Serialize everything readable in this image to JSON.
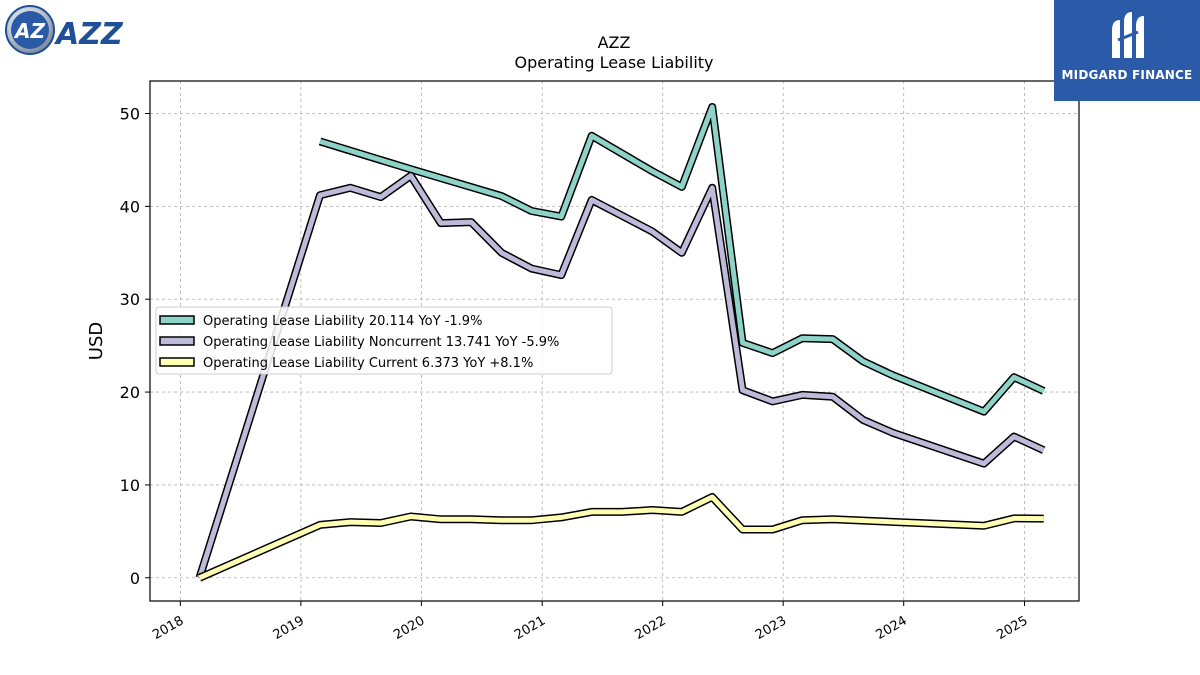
{
  "logos": {
    "company_text": "AZZ",
    "company_badge": "AZ",
    "sponsor_text": "MIDGARD FINANCE"
  },
  "chart_data": {
    "type": "line",
    "title": "AZZ",
    "subtitle": "Operating Lease Liability",
    "xlabel": "",
    "ylabel": "USD",
    "xlim": [
      "2017-10-01",
      "2025-06-15"
    ],
    "ylim": [
      -2.5,
      53.5
    ],
    "x_ticks": [
      "2018",
      "2019",
      "2020",
      "2021",
      "2022",
      "2023",
      "2024",
      "2025"
    ],
    "y_ticks": [
      0,
      10,
      20,
      30,
      40,
      50
    ],
    "grid": true,
    "legend_position": "center-left",
    "series": [
      {
        "name": "Operating Lease Liability  20.114 YoY -1.9%",
        "color": "#8dd3c7",
        "points": [
          [
            "2019-02-28",
            47.0
          ],
          [
            "2019-11-30",
            44.0
          ],
          [
            "2020-08-31",
            41.1
          ],
          [
            "2020-11-30",
            39.5
          ],
          [
            "2021-02-28",
            38.9
          ],
          [
            "2021-05-31",
            47.6
          ],
          [
            "2021-11-30",
            43.8
          ],
          [
            "2022-02-28",
            42.1
          ],
          [
            "2022-05-31",
            50.7
          ],
          [
            "2022-08-31",
            25.3
          ],
          [
            "2022-11-30",
            24.2
          ],
          [
            "2023-02-28",
            25.8
          ],
          [
            "2023-05-31",
            25.7
          ],
          [
            "2023-08-31",
            23.3
          ],
          [
            "2023-11-30",
            21.8
          ],
          [
            "2024-08-31",
            17.9
          ],
          [
            "2024-11-30",
            21.6
          ],
          [
            "2025-02-28",
            20.114
          ]
        ]
      },
      {
        "name": "Operating Lease Liability Noncurrent  13.741 YoY -5.9%",
        "color": "#bebada",
        "points": [
          [
            "2018-02-28",
            0.0
          ],
          [
            "2019-02-28",
            41.2
          ],
          [
            "2019-05-31",
            42.0
          ],
          [
            "2019-08-31",
            41.0
          ],
          [
            "2019-11-30",
            43.3
          ],
          [
            "2020-02-29",
            38.2
          ],
          [
            "2020-05-31",
            38.3
          ],
          [
            "2020-08-31",
            35.0
          ],
          [
            "2020-11-30",
            33.3
          ],
          [
            "2021-02-28",
            32.6
          ],
          [
            "2021-05-31",
            40.7
          ],
          [
            "2021-11-30",
            37.3
          ],
          [
            "2022-02-28",
            35.0
          ],
          [
            "2022-05-31",
            42.0
          ],
          [
            "2022-08-31",
            20.2
          ],
          [
            "2022-11-30",
            19.0
          ],
          [
            "2023-02-28",
            19.7
          ],
          [
            "2023-05-31",
            19.5
          ],
          [
            "2023-08-31",
            17.0
          ],
          [
            "2023-11-30",
            15.6
          ],
          [
            "2024-08-31",
            12.3
          ],
          [
            "2024-11-30",
            15.2
          ],
          [
            "2025-02-28",
            13.741
          ]
        ]
      },
      {
        "name": "Operating Lease Liability Current  6.373 YoY +8.1%",
        "color": "#ffffb3",
        "points": [
          [
            "2018-02-28",
            0.0
          ],
          [
            "2019-02-28",
            5.7
          ],
          [
            "2019-05-31",
            6.0
          ],
          [
            "2019-08-31",
            5.9
          ],
          [
            "2019-11-30",
            6.6
          ],
          [
            "2020-02-29",
            6.3
          ],
          [
            "2020-05-31",
            6.3
          ],
          [
            "2020-08-31",
            6.2
          ],
          [
            "2020-11-30",
            6.2
          ],
          [
            "2021-02-28",
            6.5
          ],
          [
            "2021-05-31",
            7.1
          ],
          [
            "2021-08-31",
            7.1
          ],
          [
            "2021-11-30",
            7.3
          ],
          [
            "2022-02-28",
            7.1
          ],
          [
            "2022-05-31",
            8.7
          ],
          [
            "2022-08-31",
            5.2
          ],
          [
            "2022-11-30",
            5.2
          ],
          [
            "2023-02-28",
            6.2
          ],
          [
            "2023-05-31",
            6.3
          ],
          [
            "2024-08-31",
            5.6
          ],
          [
            "2024-11-30",
            6.4
          ],
          [
            "2025-02-28",
            6.373
          ]
        ]
      }
    ]
  }
}
